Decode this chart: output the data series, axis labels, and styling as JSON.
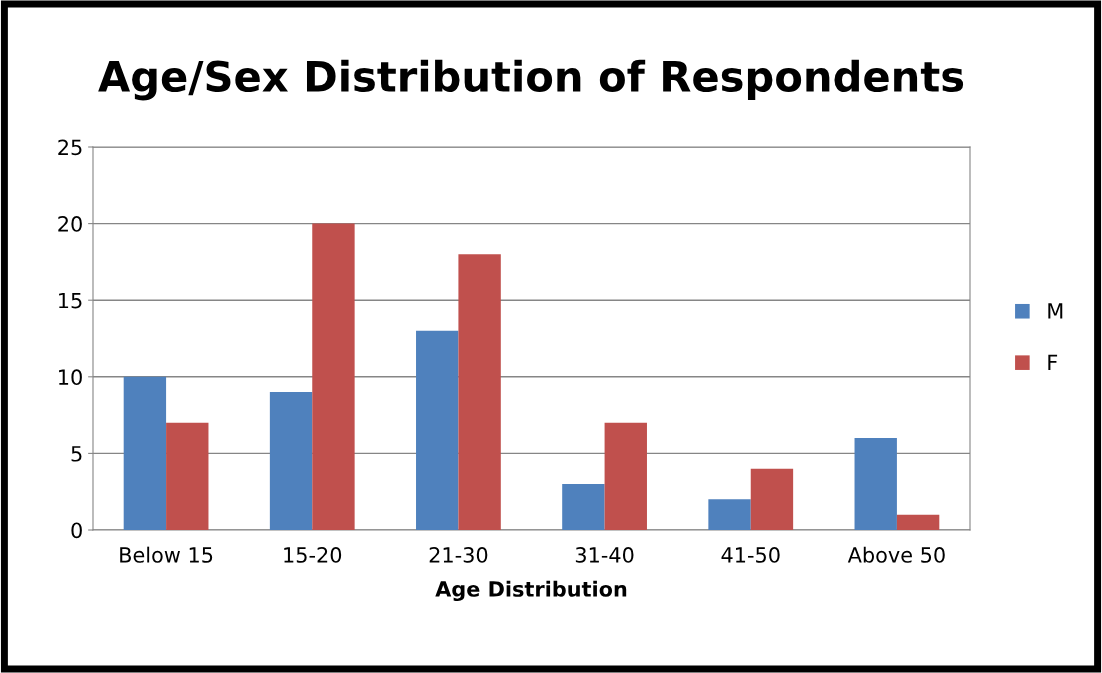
{
  "chart_data": {
    "type": "bar",
    "title": "Age/Sex Distribution of Respondents",
    "xlabel": "Age Distribution",
    "categories": [
      "Below 15",
      "15-20",
      "21-30",
      "31-40",
      "41-50",
      "Above 50"
    ],
    "series": [
      {
        "name": "M",
        "color": "#4f81bd",
        "values": [
          10,
          9,
          13,
          3,
          2,
          6
        ]
      },
      {
        "name": "F",
        "color": "#c0504d",
        "values": [
          7,
          20,
          18,
          7,
          4,
          1
        ]
      }
    ],
    "ylim": [
      0,
      25
    ],
    "yticks": [
      0,
      5,
      10,
      15,
      20,
      25
    ],
    "grid": "y",
    "legend": "right"
  }
}
